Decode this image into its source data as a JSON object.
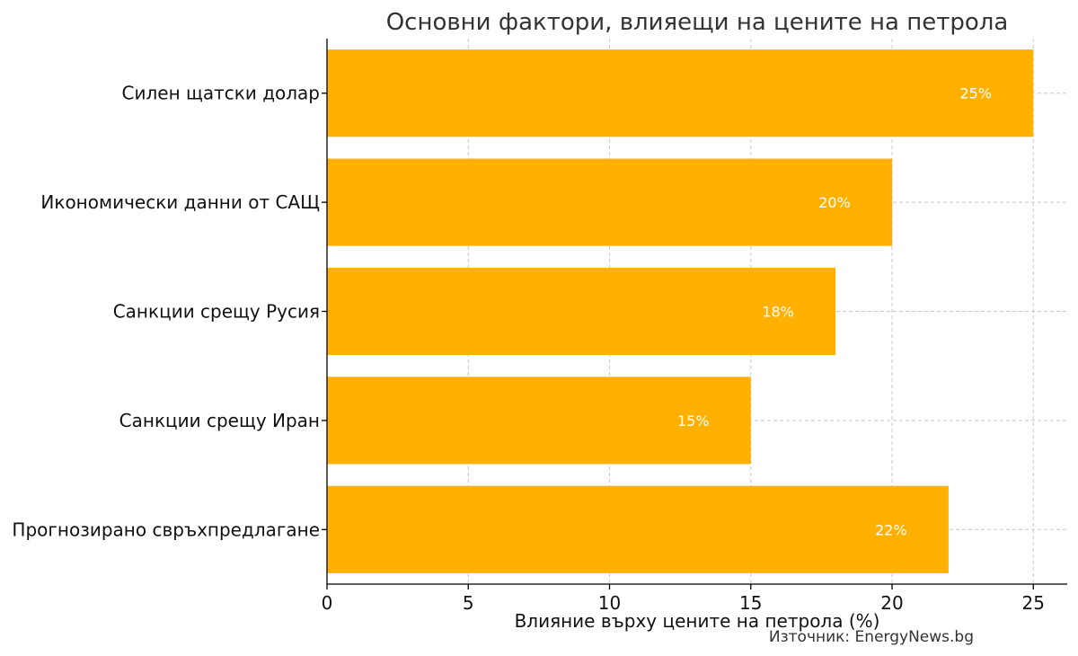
{
  "chart_data": {
    "type": "bar",
    "orientation": "horizontal",
    "title": "Основни фактори, влияещи на цените на петрола",
    "xlabel": "Влияние върху цените на петрола (%)",
    "ylabel": "",
    "categories": [
      "Силен щатски долар",
      "Икономически данни от САЩ",
      "Санкции срещу Русия",
      "Санкции срещу Иран",
      "Прогнозирано свръхпредлагане"
    ],
    "values": [
      25,
      20,
      18,
      15,
      22
    ],
    "data_labels": [
      "25%",
      "20%",
      "18%",
      "15%",
      "22%"
    ],
    "xlim": [
      0,
      26.2
    ],
    "xticks": [
      0,
      5,
      10,
      15,
      20,
      25
    ],
    "xtick_labels": [
      "0",
      "5",
      "10",
      "15",
      "20",
      "25"
    ],
    "grid": true,
    "bar_color": "#FFB000"
  },
  "source_note": "Източник: EnergyNews.bg"
}
